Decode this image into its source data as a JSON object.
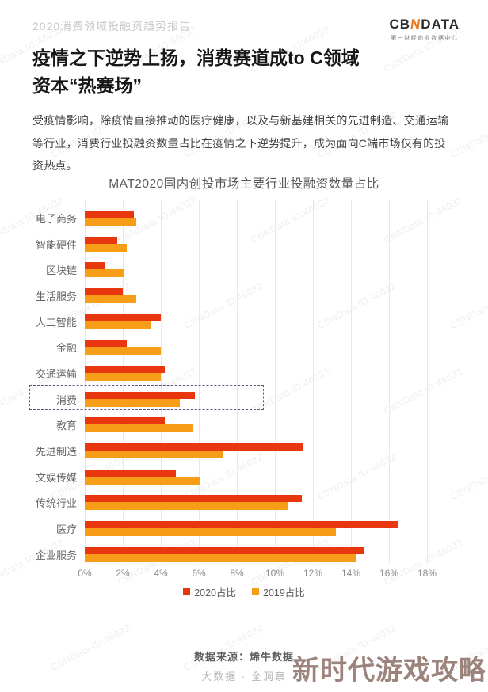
{
  "page": {
    "header": {
      "report_label": "2020消费领域投融资趋势报告",
      "logo": {
        "part1": "CB",
        "part2": "N",
        "part3": "DATA",
        "subtitle": "第一财经商业数据中心"
      }
    },
    "title_line1": "疫情之下逆势上扬，消费赛道成to C领域",
    "title_line2": "资本“热赛场”",
    "paragraph": "受疫情影响，除疫情直接推动的医疗健康，以及与新基建相关的先进制造、交通运输等行业，消费行业投融资数量占比在疫情之下逆势提升，成为面向C端市场仅有的投资热点。",
    "footer": {
      "source": "数据来源：烯牛数据",
      "slogan": "大数据 · 全洞察"
    },
    "watermark_diagonal": "CBNData ID:46032",
    "watermark_bottom": "新时代游戏攻略"
  },
  "chart_data": {
    "type": "bar",
    "orientation": "horizontal",
    "title": "MAT2020国内创投市场主要行业投融资数量占比",
    "categories": [
      "电子商务",
      "智能硬件",
      "区块链",
      "生活服务",
      "人工智能",
      "金融",
      "交通运输",
      "消费",
      "教育",
      "先进制造",
      "文娱传媒",
      "传统行业",
      "医疗",
      "企业服务"
    ],
    "series": [
      {
        "name": "2020占比",
        "color": "#e8360f",
        "values": [
          2.6,
          1.7,
          1.1,
          2.0,
          4.0,
          2.2,
          4.2,
          5.8,
          4.2,
          11.5,
          4.8,
          11.4,
          16.5,
          14.7
        ]
      },
      {
        "name": "2019占比",
        "color": "#f79d18",
        "values": [
          2.7,
          2.2,
          2.1,
          2.7,
          3.5,
          4.0,
          4.0,
          5.0,
          5.7,
          7.3,
          6.1,
          10.7,
          13.2,
          14.3
        ]
      }
    ],
    "x_ticks": [
      "0%",
      "2%",
      "4%",
      "6%",
      "8%",
      "10%",
      "12%",
      "14%",
      "16%",
      "18%"
    ],
    "xlim": [
      0,
      18
    ],
    "grid": true,
    "legend_position": "bottom",
    "highlighted_category": "消费"
  }
}
